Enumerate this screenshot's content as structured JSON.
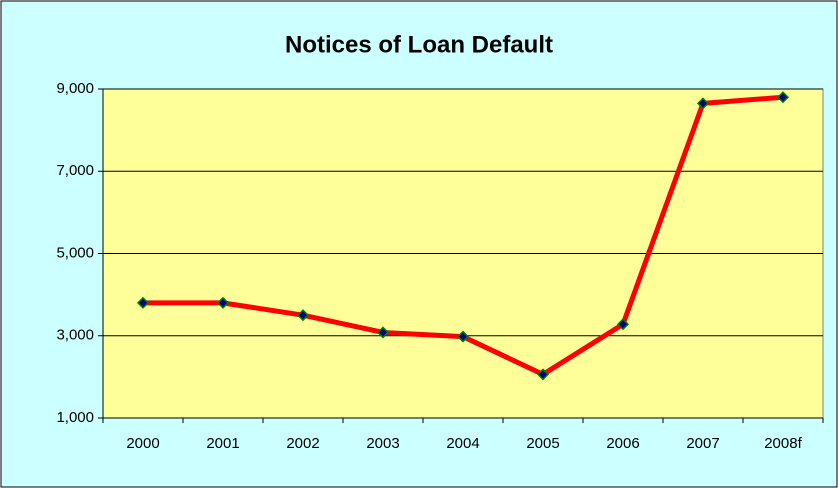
{
  "chart_data": {
    "type": "line",
    "title": "Notices of Loan Default",
    "categories": [
      "2000",
      "2001",
      "2002",
      "2003",
      "2004",
      "2005",
      "2006",
      "2007",
      "2008f"
    ],
    "series": [
      {
        "name": "Notices of Loan Default",
        "color": "#ff0000",
        "values": [
          3800,
          3800,
          3500,
          3080,
          2980,
          2060,
          3280,
          8650,
          8800
        ]
      }
    ],
    "ylim": [
      1000,
      9000
    ],
    "yticks": [
      {
        "value": 1000,
        "label": "1,000"
      },
      {
        "value": 3000,
        "label": "3,000"
      },
      {
        "value": 5000,
        "label": "5,000"
      },
      {
        "value": 7000,
        "label": "7,000"
      },
      {
        "value": 9000,
        "label": "9,000"
      }
    ],
    "grid": true
  }
}
